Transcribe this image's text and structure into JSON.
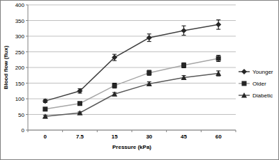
{
  "chart_data": {
    "type": "line",
    "x_label": "Pressure (kPa)",
    "y_label": "Blood flow (flux)",
    "categories": [
      "0",
      "7.5",
      "15",
      "30",
      "45",
      "60"
    ],
    "series": [
      {
        "name": "Younger",
        "color": "#404040",
        "marker": "diamond",
        "values": [
          93,
          125,
          232,
          295,
          318,
          337
        ],
        "errors": [
          5,
          7,
          10,
          12,
          15,
          15
        ]
      },
      {
        "name": "Older",
        "color": "#a6a6a6",
        "marker": "square",
        "values": [
          67,
          85,
          142,
          183,
          207,
          229
        ],
        "errors": [
          4,
          5,
          8,
          8,
          8,
          10
        ]
      },
      {
        "name": "Diabetic",
        "color": "#595959",
        "marker": "triangle",
        "values": [
          44,
          55,
          115,
          148,
          168,
          181
        ],
        "errors": [
          3,
          3,
          5,
          6,
          6,
          8
        ]
      }
    ],
    "ylim": [
      0,
      400
    ],
    "yticks": [
      0,
      50,
      100,
      150,
      200,
      250,
      300,
      350,
      400
    ],
    "grid": true,
    "legend": "right"
  }
}
